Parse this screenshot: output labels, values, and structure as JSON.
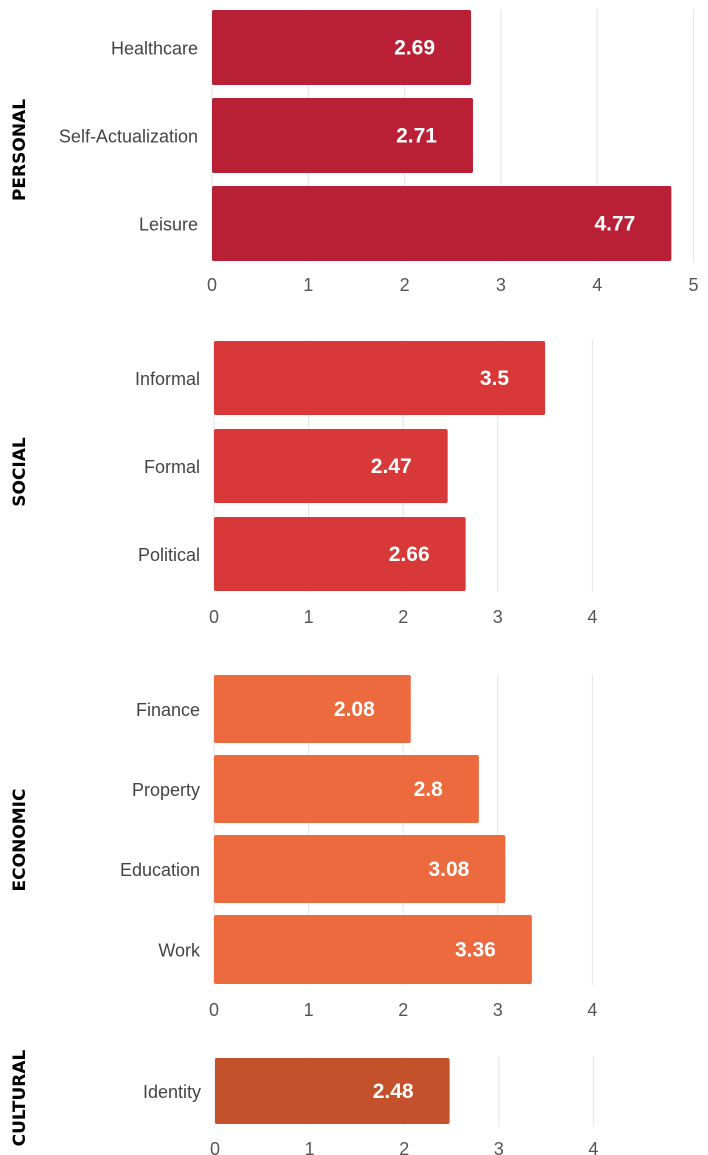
{
  "chart_data": [
    {
      "type": "bar",
      "orientation": "horizontal",
      "group": "PERSONAL",
      "categories": [
        "Healthcare",
        "Self-Actualization",
        "Leisure"
      ],
      "values": [
        2.69,
        2.71,
        4.77
      ],
      "value_labels": [
        "2.69",
        "2.71",
        "4.77"
      ],
      "xlim": [
        0,
        5
      ],
      "xticks": [
        "0",
        "1",
        "2",
        "3",
        "4",
        "5"
      ],
      "color": "#B92035",
      "grid": true
    },
    {
      "type": "bar",
      "orientation": "horizontal",
      "group": "SOCIAL",
      "categories": [
        "Informal",
        "Formal",
        "Political"
      ],
      "values": [
        3.5,
        2.47,
        2.66
      ],
      "value_labels": [
        "3.5",
        "2.47",
        "2.66"
      ],
      "xlim": [
        0,
        4
      ],
      "xticks": [
        "0",
        "1",
        "2",
        "3",
        "4"
      ],
      "color": "#D93838",
      "grid": true
    },
    {
      "type": "bar",
      "orientation": "horizontal",
      "group": "ECONOMIC",
      "categories": [
        "Finance",
        "Property",
        "Education",
        "Work"
      ],
      "values": [
        2.08,
        2.8,
        3.08,
        3.36
      ],
      "value_labels": [
        "2.08",
        "2.8",
        "3.08",
        "3.36"
      ],
      "xlim": [
        0,
        4
      ],
      "xticks": [
        "0",
        "1",
        "2",
        "3",
        "4"
      ],
      "color": "#EC6A3D",
      "grid": true
    },
    {
      "type": "bar",
      "orientation": "horizontal",
      "group": "CULTURAL",
      "categories": [
        "Identity"
      ],
      "values": [
        2.48
      ],
      "value_labels": [
        "2.48"
      ],
      "xlim": [
        0,
        4
      ],
      "xticks": [
        "0",
        "1",
        "2",
        "3",
        "4"
      ],
      "color": "#C2512C",
      "grid": true
    }
  ]
}
